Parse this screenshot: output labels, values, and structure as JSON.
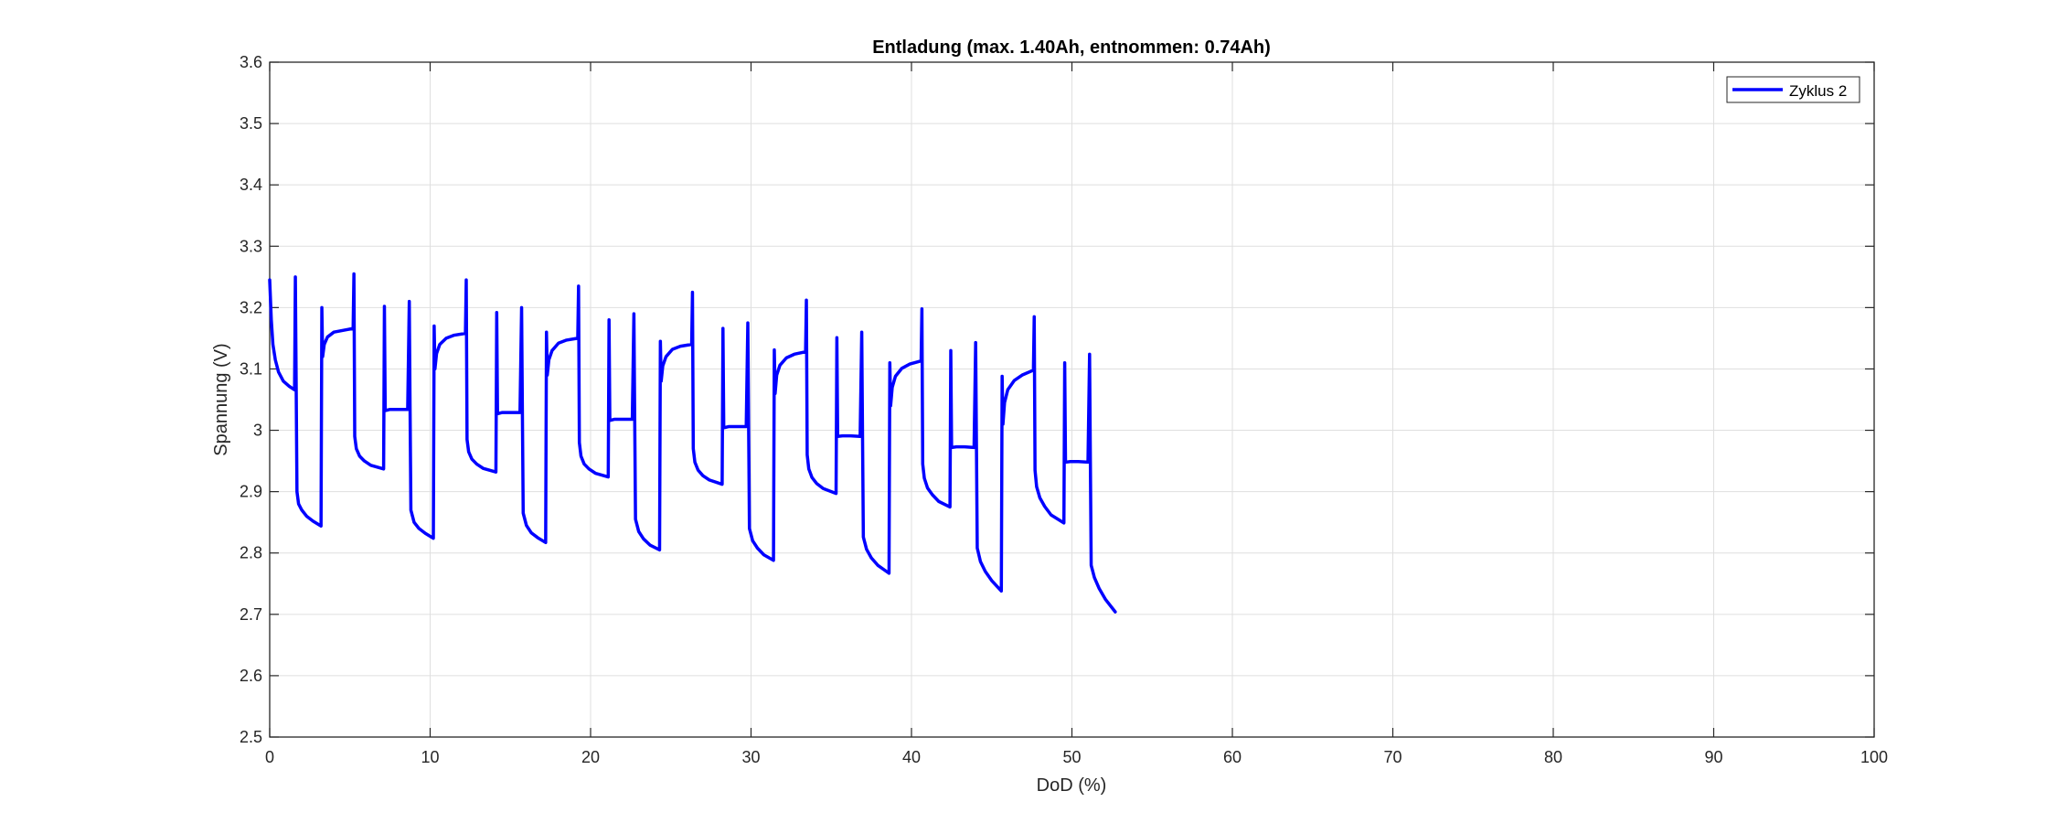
{
  "chart_data": {
    "type": "line",
    "title": "Entladung (max. 1.40Ah, entnommen: 0.74Ah)",
    "xlabel": "DoD (%)",
    "ylabel": "Spannung (V)",
    "xlim": [
      0,
      100
    ],
    "ylim": [
      2.5,
      3.6
    ],
    "xticks": [
      0,
      10,
      20,
      30,
      40,
      50,
      60,
      70,
      80,
      90,
      100
    ],
    "yticks": [
      2.5,
      2.6,
      2.7,
      2.8,
      2.9,
      3,
      3.1,
      3.2,
      3.3,
      3.4,
      3.5,
      3.6
    ],
    "ytick_labels": [
      "2.5",
      "2.6",
      "2.7",
      "2.8",
      "2.9",
      "3",
      "3.1",
      "3.2",
      "3.3",
      "3.4",
      "3.5",
      "3.6"
    ],
    "xtick_labels": [
      "0",
      "10",
      "20",
      "30",
      "40",
      "50",
      "60",
      "70",
      "80",
      "90",
      "100"
    ],
    "grid": true,
    "legend_position": "top-right",
    "series": [
      {
        "name": "Zyklus 2",
        "color": "#0000ff",
        "x": [
          0,
          0.1,
          0.2,
          0.35,
          0.55,
          0.85,
          1.2,
          1.55,
          1.6,
          1.7,
          1.8,
          2.0,
          2.3,
          2.7,
          3.2,
          3.25,
          3.3,
          3.4,
          3.6,
          4.0,
          4.6,
          5.2,
          5.25,
          5.3,
          5.4,
          5.6,
          5.9,
          6.3,
          7.1,
          7.15,
          7.2,
          7.5,
          8.0,
          8.6,
          8.7,
          8.75,
          8.8,
          9.0,
          9.3,
          9.7,
          10.2,
          10.25,
          10.3,
          10.4,
          10.6,
          11.0,
          11.5,
          12.2,
          12.25,
          12.3,
          12.4,
          12.6,
          12.9,
          13.3,
          14.1,
          14.15,
          14.2,
          14.5,
          15.0,
          15.6,
          15.7,
          15.75,
          15.8,
          16.0,
          16.3,
          16.7,
          17.2,
          17.25,
          17.3,
          17.4,
          17.6,
          18.0,
          18.5,
          19.2,
          19.25,
          19.3,
          19.4,
          19.6,
          19.9,
          20.3,
          21.1,
          21.15,
          21.2,
          21.5,
          22.0,
          22.6,
          22.7,
          22.75,
          22.8,
          23.0,
          23.3,
          23.7,
          24.3,
          24.35,
          24.4,
          24.5,
          24.7,
          25.1,
          25.6,
          26.3,
          26.35,
          26.4,
          26.5,
          26.7,
          27.0,
          27.4,
          28.2,
          28.25,
          28.3,
          28.6,
          29.1,
          29.7,
          29.8,
          29.85,
          29.9,
          30.1,
          30.4,
          30.8,
          31.4,
          31.45,
          31.5,
          31.6,
          31.8,
          32.2,
          32.7,
          33.4,
          33.45,
          33.5,
          33.6,
          33.8,
          34.1,
          34.5,
          35.3,
          35.35,
          35.4,
          35.7,
          36.2,
          36.8,
          36.9,
          36.95,
          37.0,
          37.2,
          37.5,
          37.9,
          38.6,
          38.65,
          38.7,
          38.8,
          39.0,
          39.4,
          39.9,
          40.6,
          40.65,
          40.7,
          40.8,
          41.0,
          41.3,
          41.7,
          42.4,
          42.45,
          42.5,
          42.8,
          43.3,
          43.9,
          44.0,
          44.05,
          44.1,
          44.3,
          44.6,
          45.0,
          45.6,
          45.65,
          45.7,
          45.8,
          46.0,
          46.4,
          46.9,
          47.6,
          47.65,
          47.7,
          47.8,
          48.0,
          48.3,
          48.7,
          49.5,
          49.55,
          49.6,
          49.9,
          50.4,
          51.0,
          51.1,
          51.15,
          51.2,
          51.4,
          51.7,
          52.1,
          52.7
        ],
        "y": [
          3.245,
          3.18,
          3.14,
          3.115,
          3.095,
          3.08,
          3.072,
          3.066,
          3.25,
          2.9,
          2.88,
          2.87,
          2.86,
          2.852,
          2.844,
          3.2,
          3.12,
          3.14,
          3.152,
          3.16,
          3.163,
          3.166,
          3.255,
          2.99,
          2.97,
          2.958,
          2.95,
          2.943,
          2.937,
          3.202,
          3.032,
          3.034,
          3.034,
          3.034,
          3.21,
          3.034,
          2.87,
          2.85,
          2.84,
          2.832,
          2.824,
          3.17,
          3.1,
          3.125,
          3.14,
          3.15,
          3.155,
          3.158,
          3.245,
          2.985,
          2.965,
          2.953,
          2.945,
          2.938,
          2.932,
          3.192,
          3.027,
          3.029,
          3.029,
          3.029,
          3.2,
          3.029,
          2.865,
          2.845,
          2.833,
          2.825,
          2.817,
          3.16,
          3.09,
          3.115,
          3.13,
          3.142,
          3.147,
          3.15,
          3.235,
          2.98,
          2.958,
          2.945,
          2.937,
          2.93,
          2.924,
          3.18,
          3.016,
          3.018,
          3.018,
          3.018,
          3.19,
          3.018,
          2.855,
          2.835,
          2.823,
          2.813,
          2.805,
          3.145,
          3.08,
          3.105,
          3.12,
          3.132,
          3.137,
          3.14,
          3.225,
          2.97,
          2.948,
          2.935,
          2.926,
          2.919,
          2.912,
          3.166,
          3.004,
          3.006,
          3.006,
          3.006,
          3.175,
          3.006,
          2.84,
          2.82,
          2.808,
          2.797,
          2.788,
          3.131,
          3.06,
          3.09,
          3.106,
          3.118,
          3.124,
          3.128,
          3.212,
          2.96,
          2.937,
          2.923,
          2.913,
          2.905,
          2.897,
          3.151,
          2.99,
          2.991,
          2.991,
          2.99,
          3.16,
          2.99,
          2.826,
          2.806,
          2.792,
          2.78,
          2.767,
          3.11,
          3.04,
          3.07,
          3.088,
          3.101,
          3.108,
          3.113,
          3.198,
          2.945,
          2.922,
          2.906,
          2.895,
          2.884,
          2.875,
          3.13,
          2.972,
          2.973,
          2.973,
          2.972,
          3.143,
          2.972,
          2.808,
          2.786,
          2.77,
          2.755,
          2.738,
          3.088,
          3.01,
          3.045,
          3.066,
          3.081,
          3.09,
          3.098,
          3.185,
          2.935,
          2.908,
          2.89,
          2.876,
          2.862,
          2.849,
          3.11,
          2.948,
          2.949,
          2.949,
          2.948,
          3.124,
          2.948,
          2.78,
          2.76,
          2.742,
          2.724,
          2.704
        ]
      }
    ]
  }
}
